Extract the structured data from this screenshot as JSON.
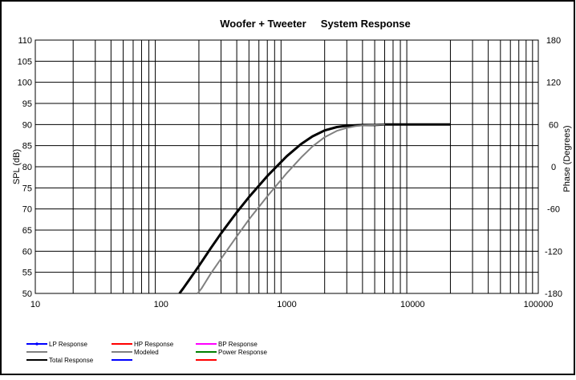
{
  "chart_data": {
    "type": "line",
    "title": "Woofer + Tweeter     System Response",
    "xlabel": "",
    "ylabel": "SPL (dB)",
    "y2label": "Phase (Degrees)",
    "xscale": "log",
    "xlim": [
      10,
      100000
    ],
    "ylim": [
      50,
      110
    ],
    "y2lim": [
      -180,
      180
    ],
    "grid": true,
    "x_ticks": [
      "10",
      "100",
      "1000",
      "10000",
      "100000"
    ],
    "y_ticks": [
      "50",
      "55",
      "60",
      "65",
      "70",
      "75",
      "80",
      "85",
      "90",
      "95",
      "100",
      "105",
      "110"
    ],
    "y2_ticks": [
      "-180",
      "-120",
      "-60",
      "0",
      "60",
      "120",
      "180"
    ],
    "series": [
      {
        "name": "Total Response",
        "color": "#000000",
        "x": [
          140,
          150,
          170,
          200,
          250,
          300,
          400,
          500,
          700,
          1000,
          1300,
          1600,
          2000,
          2500,
          3000,
          3500,
          4000,
          5000,
          6000,
          7000,
          10000,
          15000,
          20000
        ],
        "y": [
          50,
          51.2,
          53.5,
          56.5,
          60.8,
          64.2,
          69.2,
          72.8,
          77.8,
          82.5,
          85.4,
          87.2,
          88.6,
          89.4,
          89.7,
          89.8,
          89.9,
          89.9,
          90,
          90,
          90,
          90,
          90
        ]
      },
      {
        "name": "Modeled",
        "color": "#808080",
        "x": [
          195,
          210,
          250,
          300,
          400,
          500,
          700,
          1000,
          1300,
          1600,
          2000,
          2500,
          3000,
          3500,
          4000,
          5000,
          6000
        ],
        "y": [
          50,
          51.2,
          54.8,
          58.2,
          63.5,
          67.5,
          73,
          78.5,
          82.2,
          84.8,
          87,
          88.5,
          89.2,
          89.6,
          89.8,
          89.9,
          90
        ]
      }
    ],
    "legend": [
      {
        "label": "LP Response",
        "color": "#0000ff",
        "marker": true
      },
      {
        "label": "",
        "color": "#808080"
      },
      {
        "label": "Total Response",
        "color": "#000000"
      },
      {
        "label": "HP Response",
        "color": "#ff0000"
      },
      {
        "label": "Modeled",
        "color": "#808080"
      },
      {
        "label": "",
        "color": "#0000ff"
      },
      {
        "label": "BP Response",
        "color": "#ff00ff"
      },
      {
        "label": "Power Response",
        "color": "#008000"
      },
      {
        "label": "",
        "color": "#ff0000"
      }
    ],
    "legend_position": "bottom-left"
  }
}
